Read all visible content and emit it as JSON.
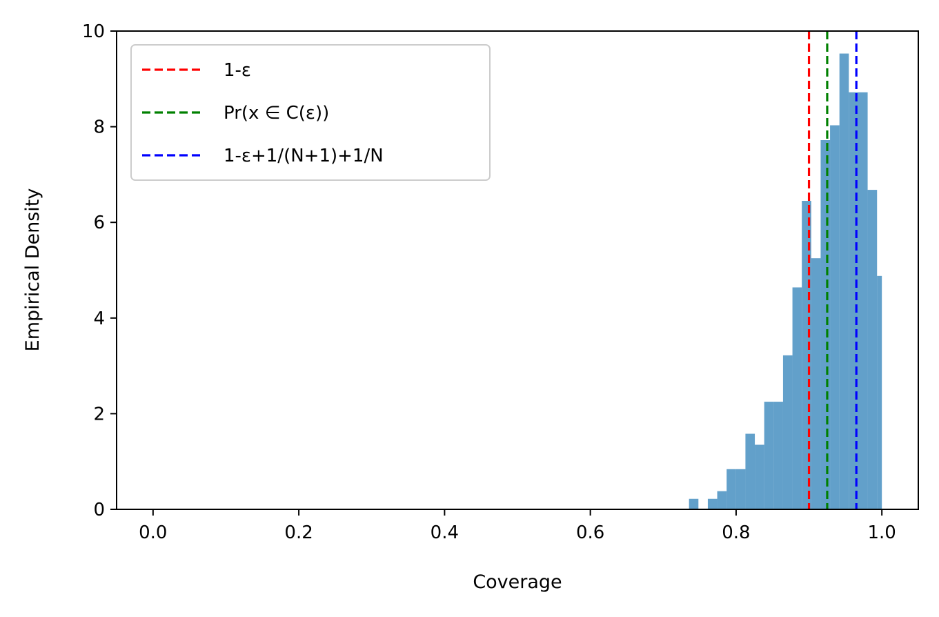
{
  "chart_data": {
    "type": "histogram",
    "xlabel": "Coverage",
    "ylabel": "Empirical Density",
    "xlim": [
      -0.05,
      1.05
    ],
    "ylim": [
      0,
      10
    ],
    "xticks": [
      "0.0",
      "0.2",
      "0.4",
      "0.6",
      "0.8",
      "1.0"
    ],
    "yticks": [
      "0",
      "2",
      "4",
      "6",
      "8",
      "10"
    ],
    "bar_color": "#1f77b4",
    "bar_alpha": 0.7,
    "bin_width": 0.0129,
    "bins": [
      {
        "x0": 0.7354,
        "x1": 0.7483,
        "density": 0.22
      },
      {
        "x0": 0.7483,
        "x1": 0.7612,
        "density": 0.0
      },
      {
        "x0": 0.7612,
        "x1": 0.7741,
        "density": 0.22
      },
      {
        "x0": 0.7741,
        "x1": 0.787,
        "density": 0.38
      },
      {
        "x0": 0.787,
        "x1": 0.7999,
        "density": 0.84
      },
      {
        "x0": 0.7999,
        "x1": 0.8128,
        "density": 0.84
      },
      {
        "x0": 0.8128,
        "x1": 0.8257,
        "density": 1.58
      },
      {
        "x0": 0.8257,
        "x1": 0.8386,
        "density": 1.35
      },
      {
        "x0": 0.8386,
        "x1": 0.8515,
        "density": 2.25
      },
      {
        "x0": 0.8515,
        "x1": 0.8644,
        "density": 2.25
      },
      {
        "x0": 0.8644,
        "x1": 0.8773,
        "density": 3.22
      },
      {
        "x0": 0.8773,
        "x1": 0.8902,
        "density": 4.64
      },
      {
        "x0": 0.8902,
        "x1": 0.9031,
        "density": 6.45
      },
      {
        "x0": 0.9031,
        "x1": 0.916,
        "density": 5.25
      },
      {
        "x0": 0.916,
        "x1": 0.9289,
        "density": 7.72
      },
      {
        "x0": 0.9289,
        "x1": 0.9418,
        "density": 8.03
      },
      {
        "x0": 0.9418,
        "x1": 0.9547,
        "density": 9.53
      },
      {
        "x0": 0.9547,
        "x1": 0.9676,
        "density": 8.72
      },
      {
        "x0": 0.9676,
        "x1": 0.9805,
        "density": 8.72
      },
      {
        "x0": 0.9805,
        "x1": 0.9934,
        "density": 6.68
      },
      {
        "x0": 0.9934,
        "x1": 1.0,
        "density": 4.88
      }
    ],
    "vlines": [
      {
        "label": "1-ε",
        "x": 0.9,
        "color": "#ff0000"
      },
      {
        "label": "Pr(x ∈ C(ε))",
        "x": 0.925,
        "color": "#008000"
      },
      {
        "label": "1-ε+1/(N+1)+1/N",
        "x": 0.965,
        "color": "#0000ff"
      }
    ],
    "legend_position": "upper-left"
  }
}
